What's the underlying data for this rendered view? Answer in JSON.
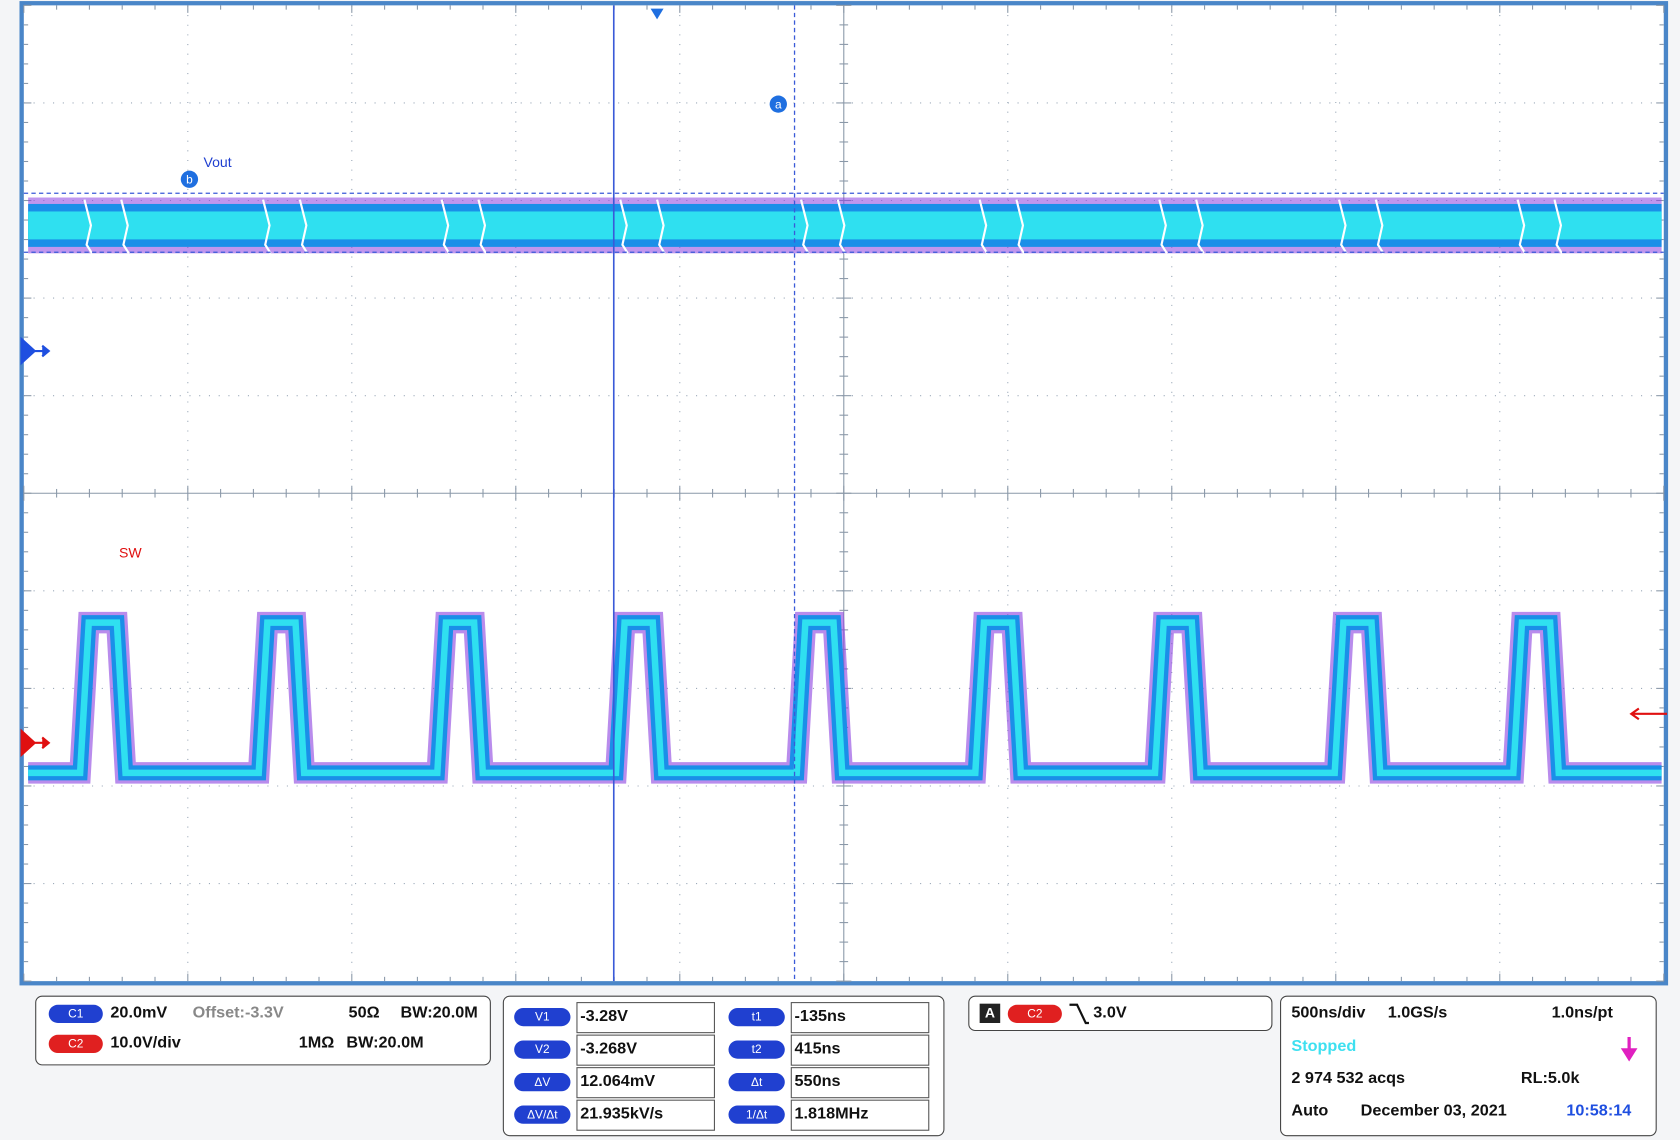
{
  "display": {
    "vout_label": "Vout",
    "sw_label": "SW",
    "marker_a": "a",
    "marker_b": "b"
  },
  "channels": [
    {
      "id": "C1",
      "scale": "20.0mV",
      "offset": "Offset:-3.3V",
      "impedance": "50Ω",
      "bandwidth": "BW:20.0M"
    },
    {
      "id": "C2",
      "scale": "10.0V/div",
      "impedance": "1MΩ",
      "bandwidth": "BW:20.0M"
    }
  ],
  "cursors": {
    "voltage": [
      {
        "label": "V1",
        "value": "-3.28V"
      },
      {
        "label": "V2",
        "value": "-3.268V"
      },
      {
        "label": "ΔV",
        "value": "12.064mV"
      },
      {
        "label": "ΔV/Δt",
        "value": "21.935kV/s"
      }
    ],
    "time": [
      {
        "label": "t1",
        "value": "-135ns"
      },
      {
        "label": "t2",
        "value": "415ns"
      },
      {
        "label": "Δt",
        "value": "550ns"
      },
      {
        "label": "1/Δt",
        "value": "1.818MHz"
      }
    ]
  },
  "trigger": {
    "mode": "A",
    "source": "C2",
    "level": "3.0V"
  },
  "timebase": {
    "scale": "500ns/div",
    "sample_rate": "1.0GS/s",
    "resolution": "1.0ns/pt",
    "status": "Stopped",
    "acquisitions": "2 974 532 acqs",
    "record_length": "RL:5.0k",
    "trigger_mode": "Auto",
    "date": "December 03, 2021",
    "time": "10:58:14"
  }
}
